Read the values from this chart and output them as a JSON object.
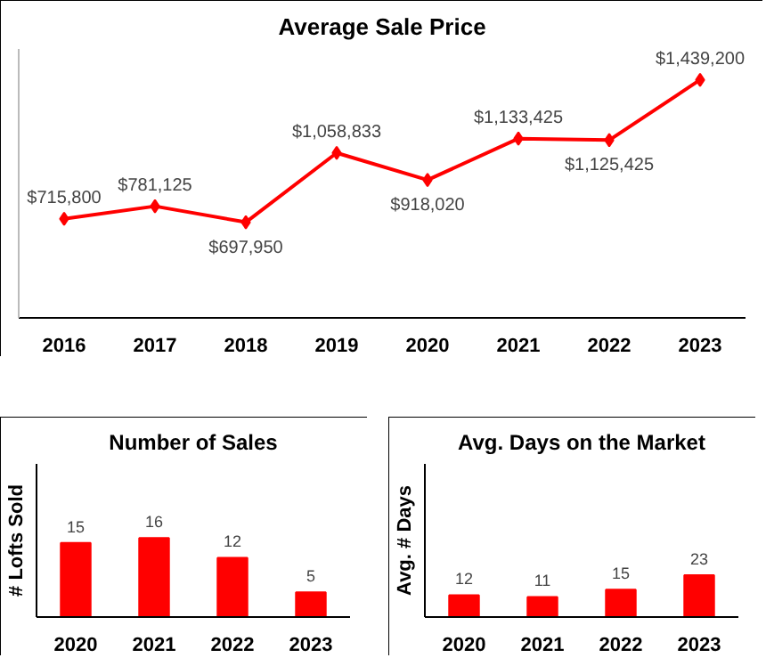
{
  "chart_data": [
    {
      "type": "line",
      "title": "Average Sale Price",
      "categories": [
        "2016",
        "2017",
        "2018",
        "2019",
        "2020",
        "2021",
        "2022",
        "2023"
      ],
      "values": [
        715800,
        781125,
        697950,
        1058833,
        918020,
        1133425,
        1125425,
        1439200
      ],
      "value_labels": [
        "$715,800",
        "$781,125",
        "$697,950",
        "$1,058,833",
        "$918,020",
        "$1,133,425",
        "$1,125,425",
        "$1,439,200"
      ],
      "color": "#ff0000",
      "marker": "diamond",
      "ylim": [
        200000,
        1600000
      ],
      "grid": false,
      "tick_labels": "x"
    },
    {
      "type": "bar",
      "title": "Number of Sales",
      "ylabel": "# Lofts Sold",
      "categories": [
        "2020",
        "2021",
        "2022",
        "2023"
      ],
      "values": [
        15,
        16,
        12,
        5
      ],
      "color": "#ff0000",
      "data_labels": true,
      "ylim": [
        0,
        31
      ],
      "grid": false,
      "tick_labels": "x"
    },
    {
      "type": "bar",
      "title": "Avg. Days on the Market",
      "ylabel": "Avg. # Days",
      "categories": [
        "2020",
        "2021",
        "2022",
        "2023"
      ],
      "values": [
        12,
        11,
        15,
        23
      ],
      "color": "#ff0000",
      "data_labels": true,
      "ylim": [
        0,
        84
      ],
      "grid": false,
      "tick_labels": "x"
    }
  ]
}
